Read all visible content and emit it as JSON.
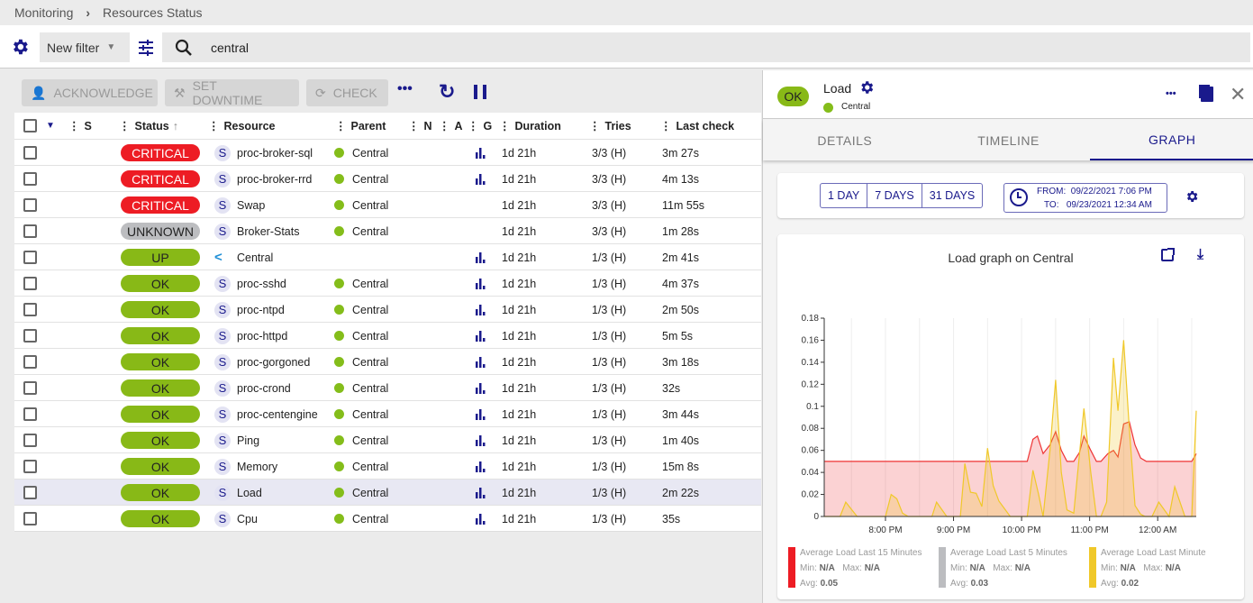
{
  "breadcrumb": {
    "items": [
      "Monitoring",
      "Resources Status"
    ]
  },
  "filter": {
    "selected": "New filter",
    "search_value": "central"
  },
  "actions": {
    "acknowledge": "ACKNOWLEDGE",
    "downtime": "SET DOWNTIME",
    "check": "CHECK"
  },
  "columns": [
    "S",
    "Status",
    "Resource",
    "Parent",
    "N",
    "A",
    "G",
    "Duration",
    "Tries",
    "Last check"
  ],
  "rows": [
    {
      "status": "CRITICAL",
      "resource": "proc-broker-sql",
      "parent": "Central",
      "graph": true,
      "duration": "1d 21h",
      "tries": "3/3 (H)",
      "last_check": "3m 27s"
    },
    {
      "status": "CRITICAL",
      "resource": "proc-broker-rrd",
      "parent": "Central",
      "graph": true,
      "duration": "1d 21h",
      "tries": "3/3 (H)",
      "last_check": "4m 13s"
    },
    {
      "status": "CRITICAL",
      "resource": "Swap",
      "parent": "Central",
      "graph": false,
      "duration": "1d 21h",
      "tries": "3/3 (H)",
      "last_check": "11m 55s"
    },
    {
      "status": "UNKNOWN",
      "resource": "Broker-Stats",
      "parent": "Central",
      "graph": false,
      "duration": "1d 21h",
      "tries": "3/3 (H)",
      "last_check": "1m 28s"
    },
    {
      "status": "UP",
      "resource": "Central",
      "parent": "",
      "host": true,
      "graph": true,
      "duration": "1d 21h",
      "tries": "1/3 (H)",
      "last_check": "2m 41s"
    },
    {
      "status": "OK",
      "resource": "proc-sshd",
      "parent": "Central",
      "graph": true,
      "duration": "1d 21h",
      "tries": "1/3 (H)",
      "last_check": "4m 37s"
    },
    {
      "status": "OK",
      "resource": "proc-ntpd",
      "parent": "Central",
      "graph": true,
      "duration": "1d 21h",
      "tries": "1/3 (H)",
      "last_check": "2m 50s"
    },
    {
      "status": "OK",
      "resource": "proc-httpd",
      "parent": "Central",
      "graph": true,
      "duration": "1d 21h",
      "tries": "1/3 (H)",
      "last_check": "5m 5s"
    },
    {
      "status": "OK",
      "resource": "proc-gorgoned",
      "parent": "Central",
      "graph": true,
      "duration": "1d 21h",
      "tries": "1/3 (H)",
      "last_check": "3m 18s"
    },
    {
      "status": "OK",
      "resource": "proc-crond",
      "parent": "Central",
      "graph": true,
      "duration": "1d 21h",
      "tries": "1/3 (H)",
      "last_check": "32s"
    },
    {
      "status": "OK",
      "resource": "proc-centengine",
      "parent": "Central",
      "graph": true,
      "duration": "1d 21h",
      "tries": "1/3 (H)",
      "last_check": "3m 44s"
    },
    {
      "status": "OK",
      "resource": "Ping",
      "parent": "Central",
      "graph": true,
      "duration": "1d 21h",
      "tries": "1/3 (H)",
      "last_check": "1m 40s"
    },
    {
      "status": "OK",
      "resource": "Memory",
      "parent": "Central",
      "graph": true,
      "duration": "1d 21h",
      "tries": "1/3 (H)",
      "last_check": "15m 8s"
    },
    {
      "status": "OK",
      "resource": "Load",
      "parent": "Central",
      "graph": true,
      "selected": true,
      "duration": "1d 21h",
      "tries": "1/3 (H)",
      "last_check": "2m 22s"
    },
    {
      "status": "OK",
      "resource": "Cpu",
      "parent": "Central",
      "graph": true,
      "duration": "1d 21h",
      "tries": "1/3 (H)",
      "last_check": "35s"
    }
  ],
  "status_colors": {
    "CRITICAL": "#ed1c24",
    "UNKNOWN": "#bcbdc0",
    "UP": "#88b917",
    "OK": "#88b917"
  },
  "resource_type_letter": "S",
  "panel": {
    "status": "OK",
    "name": "Load",
    "parent": "Central",
    "tabs": [
      "DETAILS",
      "TIMELINE",
      "GRAPH"
    ],
    "active_tab": "GRAPH",
    "periods": [
      "1 DAY",
      "7 DAYS",
      "31 DAYS"
    ],
    "from_label": "FROM:",
    "from": "09/22/2021 7:06 PM",
    "to_label": "TO:",
    "to": "09/23/2021 12:34 AM"
  },
  "chart_data": {
    "type": "area",
    "title": "Load graph on Central",
    "xlim": [
      "19:06",
      "00:34"
    ],
    "ylim": [
      0,
      0.18
    ],
    "yticks": [
      "0",
      "0.02",
      "0.04",
      "0.06",
      "0.08",
      "0.1",
      "0.12",
      "0.14",
      "0.16",
      "0.18"
    ],
    "xticks": [
      "8:00 PM",
      "9:00 PM",
      "10:00 PM",
      "11:00 PM",
      "12:00 AM"
    ],
    "grid": "vertical",
    "legend": "bottom",
    "series": [
      {
        "name": "Average Load Last 15 Minutes",
        "color": "#ed1c24",
        "min": "N/A",
        "max": "N/A",
        "avg": "0.05",
        "points": [
          [
            "19:06",
            0.05
          ],
          [
            "22:05",
            0.05
          ],
          [
            "22:10",
            0.07
          ],
          [
            "22:14",
            0.073
          ],
          [
            "22:19",
            0.057
          ],
          [
            "22:25",
            0.065
          ],
          [
            "22:30",
            0.077
          ],
          [
            "22:35",
            0.06
          ],
          [
            "22:40",
            0.05
          ],
          [
            "22:46",
            0.05
          ],
          [
            "22:51",
            0.058
          ],
          [
            "22:55",
            0.073
          ],
          [
            "23:01",
            0.06
          ],
          [
            "23:06",
            0.05
          ],
          [
            "23:10",
            0.05
          ],
          [
            "23:16",
            0.057
          ],
          [
            "23:21",
            0.06
          ],
          [
            "23:25",
            0.054
          ],
          [
            "23:30",
            0.084
          ],
          [
            "23:35",
            0.086
          ],
          [
            "23:40",
            0.065
          ],
          [
            "23:45",
            0.053
          ],
          [
            "23:50",
            0.05
          ],
          [
            "00:30",
            0.05
          ],
          [
            "00:34",
            0.057
          ]
        ]
      },
      {
        "name": "Average Load Last 5 Minutes",
        "color": "#bcbdc0",
        "min": "N/A",
        "max": "N/A",
        "avg": "0.03",
        "points": []
      },
      {
        "name": "Average Load Last Minute",
        "color": "#f0c829",
        "min": "N/A",
        "max": "N/A",
        "avg": "0.02",
        "points": [
          [
            "19:06",
            0
          ],
          [
            "19:20",
            0
          ],
          [
            "19:25",
            0.013
          ],
          [
            "19:35",
            0
          ],
          [
            "20:00",
            0
          ],
          [
            "20:05",
            0.02
          ],
          [
            "20:10",
            0.016
          ],
          [
            "20:15",
            0.003
          ],
          [
            "20:20",
            0
          ],
          [
            "20:41",
            0
          ],
          [
            "20:45",
            0.013
          ],
          [
            "20:54",
            0
          ],
          [
            "21:06",
            0
          ],
          [
            "21:10",
            0.048
          ],
          [
            "21:15",
            0.022
          ],
          [
            "21:20",
            0.021
          ],
          [
            "21:25",
            0.009
          ],
          [
            "21:30",
            0.062
          ],
          [
            "21:35",
            0.028
          ],
          [
            "21:40",
            0.014
          ],
          [
            "21:50",
            0
          ],
          [
            "22:05",
            0
          ],
          [
            "22:10",
            0.042
          ],
          [
            "22:15",
            0.02
          ],
          [
            "22:19",
            0
          ],
          [
            "22:25",
            0.06
          ],
          [
            "22:30",
            0.124
          ],
          [
            "22:35",
            0.04
          ],
          [
            "22:40",
            0.006
          ],
          [
            "22:46",
            0.003
          ],
          [
            "22:55",
            0.098
          ],
          [
            "23:01",
            0.04
          ],
          [
            "23:06",
            0
          ],
          [
            "23:10",
            0
          ],
          [
            "23:15",
            0.013
          ],
          [
            "23:21",
            0.144
          ],
          [
            "23:25",
            0.096
          ],
          [
            "23:30",
            0.16
          ],
          [
            "23:35",
            0.08
          ],
          [
            "23:40",
            0.01
          ],
          [
            "23:45",
            0.002
          ],
          [
            "23:49",
            0
          ],
          [
            "23:55",
            0
          ],
          [
            "00:01",
            0.013
          ],
          [
            "00:10",
            0
          ],
          [
            "00:15",
            0.027
          ],
          [
            "00:24",
            0
          ],
          [
            "00:30",
            0
          ],
          [
            "00:34",
            0.096
          ]
        ]
      }
    ]
  }
}
